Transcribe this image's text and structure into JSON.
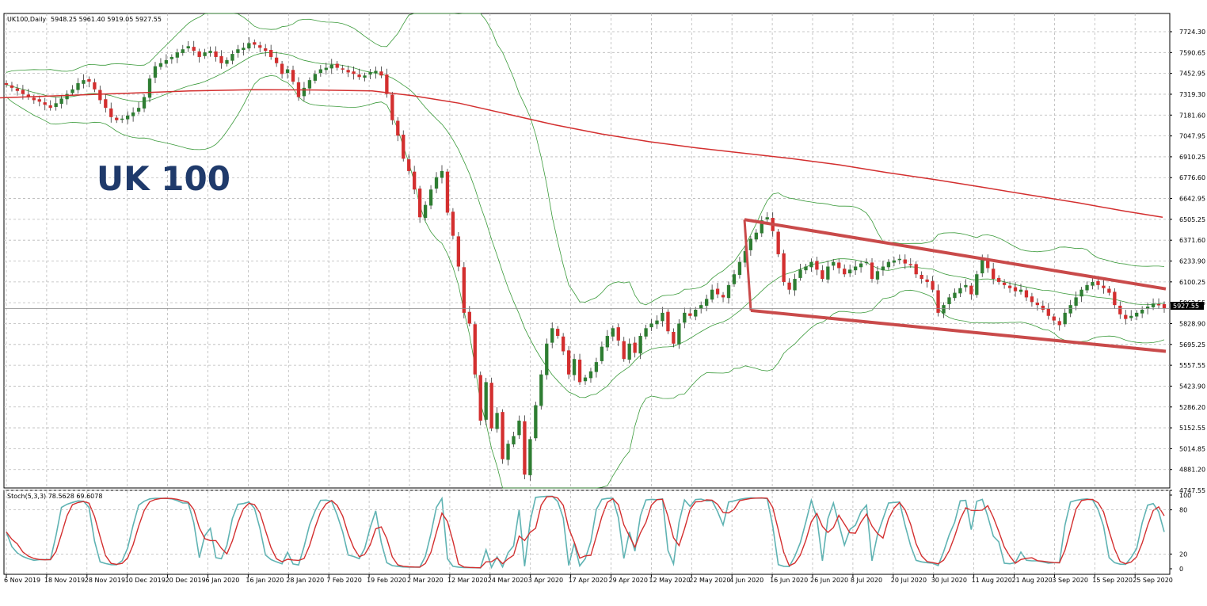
{
  "chart_data": [
    {
      "type": "candlestick",
      "symbol_header": "UK100,Daily",
      "ohlc_header": "5948.25 5961.40 5919.05 5927.55",
      "brand_label": "UK 100",
      "y_ticks": [
        "7724.30",
        "7590.65",
        "7452.95",
        "7319.30",
        "7181.60",
        "7047.95",
        "6910.25",
        "6776.60",
        "6642.95",
        "6505.25",
        "6371.60",
        "6233.90",
        "6100.25",
        "5962.55",
        "5828.90",
        "5695.25",
        "5557.55",
        "5423.90",
        "5286.20",
        "5152.55",
        "5014.85",
        "4881.20",
        "4747.55"
      ],
      "last_price_label": "5927.55",
      "x_ticks": [
        "6 Nov 2019",
        "18 Nov 2019",
        "28 Nov 2019",
        "10 Dec 2019",
        "20 Dec 2019",
        "6 Jan 2020",
        "16 Jan 2020",
        "28 Jan 2020",
        "7 Feb 2020",
        "19 Feb 2020",
        "2 Mar 2020",
        "12 Mar 2020",
        "24 Mar 2020",
        "3 Apr 2020",
        "17 Apr 2020",
        "29 Apr 2020",
        "12 May 2020",
        "22 May 2020",
        "4 Jun 2020",
        "16 Jun 2020",
        "26 Jun 2020",
        "8 Jul 2020",
        "20 Jul 2020",
        "30 Jul 2020",
        "11 Aug 2020",
        "21 Aug 2020",
        "3 Sep 2020",
        "15 Sep 2020",
        "25 Sep 2020"
      ],
      "closes": [
        7380,
        7360,
        7340,
        7320,
        7300,
        7280,
        7270,
        7250,
        7230,
        7260,
        7290,
        7320,
        7350,
        7390,
        7410,
        7400,
        7350,
        7280,
        7230,
        7170,
        7150,
        7160,
        7180,
        7200,
        7230,
        7300,
        7420,
        7500,
        7520,
        7540,
        7560,
        7590,
        7610,
        7630,
        7600,
        7560,
        7590,
        7600,
        7560,
        7520,
        7540,
        7580,
        7610,
        7620,
        7650,
        7640,
        7620,
        7600,
        7560,
        7520,
        7450,
        7480,
        7400,
        7300,
        7360,
        7410,
        7450,
        7480,
        7490,
        7510,
        7490,
        7480,
        7460,
        7450,
        7430,
        7440,
        7460,
        7470,
        7440,
        7320,
        7150,
        7050,
        6900,
        6820,
        6700,
        6520,
        6600,
        6700,
        6780,
        6820,
        6550,
        6400,
        6200,
        5900,
        5830,
        5500,
        5200,
        5450,
        5150,
        5250,
        4950,
        5050,
        5100,
        5200,
        4850,
        5080,
        5300,
        5500,
        5700,
        5800,
        5750,
        5650,
        5500,
        5600,
        5450,
        5480,
        5520,
        5580,
        5680,
        5750,
        5800,
        5720,
        5600,
        5700,
        5640,
        5750,
        5800,
        5830,
        5850,
        5900,
        5780,
        5700,
        5830,
        5900,
        5880,
        5920,
        5950,
        5990,
        6050,
        6020,
        6000,
        6080,
        6150,
        6230,
        6300,
        6380,
        6420,
        6500,
        6520,
        6430,
        6280,
        6100,
        6050,
        6120,
        6180,
        6200,
        6230,
        6180,
        6120,
        6200,
        6230,
        6190,
        6150,
        6180,
        6200,
        6220,
        6230,
        6120,
        6170,
        6200,
        6230,
        6240,
        6250,
        6220,
        6210,
        6150,
        6120,
        6100,
        6050,
        5900,
        5950,
        6000,
        6030,
        6060,
        6080,
        6020,
        6150,
        6250,
        6190,
        6120,
        6100,
        6080,
        6060,
        6040,
        6050,
        6000,
        5970,
        5950,
        5920,
        5880,
        5850,
        5820,
        5900,
        5950,
        6000,
        6050,
        6080,
        6100,
        6080,
        6060,
        6030,
        5950,
        5890,
        5860,
        5880,
        5900,
        5920,
        5940,
        5960,
        5950,
        5930
      ],
      "ma_line": [
        [
          0,
          7295
        ],
        [
          80,
          7310
        ],
        [
          160,
          7325
        ],
        [
          240,
          7340
        ],
        [
          320,
          7348
        ],
        [
          400,
          7346
        ],
        [
          470,
          7340
        ],
        [
          520,
          7310
        ],
        [
          580,
          7260
        ],
        [
          640,
          7190
        ],
        [
          700,
          7120
        ],
        [
          760,
          7060
        ],
        [
          820,
          7010
        ],
        [
          880,
          6970
        ],
        [
          940,
          6935
        ],
        [
          1000,
          6900
        ],
        [
          1060,
          6860
        ],
        [
          1120,
          6810
        ],
        [
          1180,
          6765
        ],
        [
          1240,
          6715
        ],
        [
          1300,
          6665
        ],
        [
          1360,
          6615
        ],
        [
          1420,
          6560
        ],
        [
          1468,
          6520
        ]
      ],
      "channel_upper": [
        [
          940,
          6505
        ],
        [
          1472,
          6055
        ]
      ],
      "channel_lower": [
        [
          948,
          5915
        ],
        [
          1472,
          5650
        ]
      ],
      "stoch_header": "Stoch(5,3,3) 78.5628 69.6078",
      "stoch_levels": [
        "100",
        "80",
        "20",
        "0"
      ]
    }
  ],
  "colors": {
    "bull": "#2e7d32",
    "bear": "#d32f2f",
    "ma": "#d32f2f",
    "channel": "#c94a4a",
    "bands": "#3a9a3a",
    "stoch_k": "#5fb3b3",
    "stoch_d": "#d32f2f"
  }
}
